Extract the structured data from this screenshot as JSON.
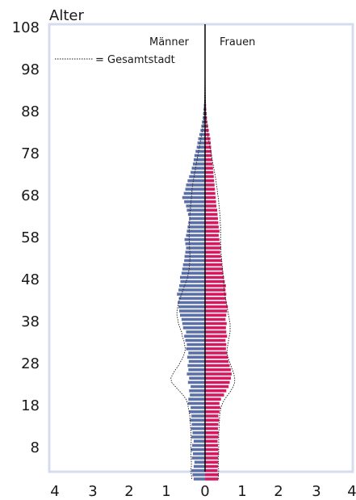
{
  "chart_data": {
    "type": "bar",
    "orientation": "horizontal",
    "title": "Alter",
    "y_ticks": [
      8,
      18,
      28,
      38,
      48,
      58,
      68,
      78,
      88,
      98,
      108
    ],
    "ylim": [
      0,
      108
    ],
    "x_ticks": [
      "4",
      "3",
      "2",
      "1",
      "0",
      "0",
      "1",
      "2",
      "3",
      "4"
    ],
    "xlim": [
      -4,
      4
    ],
    "legend": {
      "left_label": "Männer",
      "right_label": "Frauen",
      "line_label": "= Gesamtstadt",
      "position": "top"
    },
    "colors": {
      "men": "#5b6fa8",
      "women": "#d6195f",
      "frame": "#d4dcee",
      "outline": "#1a1a1a"
    },
    "ages": [
      0,
      1,
      2,
      3,
      4,
      5,
      6,
      7,
      8,
      9,
      10,
      11,
      12,
      13,
      14,
      15,
      16,
      17,
      18,
      19,
      20,
      21,
      22,
      23,
      24,
      25,
      26,
      27,
      28,
      29,
      30,
      31,
      32,
      33,
      34,
      35,
      36,
      37,
      38,
      39,
      40,
      41,
      42,
      43,
      44,
      45,
      46,
      47,
      48,
      49,
      50,
      51,
      52,
      53,
      54,
      55,
      56,
      57,
      58,
      59,
      60,
      61,
      62,
      63,
      64,
      65,
      66,
      67,
      68,
      69,
      70,
      71,
      72,
      73,
      74,
      75,
      76,
      77,
      78,
      79,
      80,
      81,
      82,
      83,
      84,
      85,
      86,
      87,
      88,
      89,
      90,
      91,
      92,
      93,
      94,
      95
    ],
    "men": [
      0.3,
      0.33,
      0.36,
      0.3,
      0.28,
      0.35,
      0.32,
      0.38,
      0.34,
      0.3,
      0.36,
      0.33,
      0.37,
      0.35,
      0.4,
      0.36,
      0.42,
      0.38,
      0.45,
      0.44,
      0.4,
      0.42,
      0.38,
      0.45,
      0.42,
      0.48,
      0.44,
      0.46,
      0.43,
      0.47,
      0.44,
      0.5,
      0.48,
      0.52,
      0.55,
      0.5,
      0.58,
      0.6,
      0.62,
      0.66,
      0.68,
      0.7,
      0.72,
      0.69,
      0.74,
      0.7,
      0.68,
      0.65,
      0.66,
      0.62,
      0.6,
      0.58,
      0.55,
      0.54,
      0.52,
      0.5,
      0.52,
      0.54,
      0.5,
      0.48,
      0.46,
      0.44,
      0.42,
      0.45,
      0.48,
      0.5,
      0.55,
      0.6,
      0.56,
      0.52,
      0.5,
      0.46,
      0.42,
      0.38,
      0.35,
      0.32,
      0.3,
      0.28,
      0.25,
      0.22,
      0.2,
      0.18,
      0.15,
      0.12,
      0.1,
      0.08,
      0.06,
      0.05,
      0.04,
      0.03,
      0.02,
      0.015,
      0.01,
      0.008,
      0.005,
      0.003
    ],
    "women": [
      0.35,
      0.36,
      0.33,
      0.34,
      0.35,
      0.34,
      0.36,
      0.35,
      0.34,
      0.33,
      0.35,
      0.36,
      0.34,
      0.35,
      0.37,
      0.35,
      0.38,
      0.4,
      0.38,
      0.42,
      0.5,
      0.56,
      0.62,
      0.65,
      0.68,
      0.7,
      0.68,
      0.65,
      0.62,
      0.6,
      0.58,
      0.55,
      0.56,
      0.54,
      0.58,
      0.56,
      0.55,
      0.57,
      0.54,
      0.56,
      0.58,
      0.6,
      0.57,
      0.55,
      0.56,
      0.54,
      0.55,
      0.52,
      0.5,
      0.48,
      0.47,
      0.45,
      0.44,
      0.42,
      0.4,
      0.42,
      0.4,
      0.38,
      0.36,
      0.38,
      0.36,
      0.35,
      0.34,
      0.33,
      0.32,
      0.3,
      0.29,
      0.28,
      0.27,
      0.26,
      0.25,
      0.24,
      0.23,
      0.22,
      0.21,
      0.2,
      0.19,
      0.18,
      0.17,
      0.16,
      0.15,
      0.14,
      0.12,
      0.1,
      0.08,
      0.06,
      0.05,
      0.04,
      0.03,
      0.025,
      0.02,
      0.012,
      0.008,
      0.005,
      0.003,
      0.002
    ],
    "gesamtstadt_men": [
      0.35,
      0.36,
      0.38,
      0.36,
      0.36,
      0.37,
      0.37,
      0.36,
      0.38,
      0.36,
      0.37,
      0.37,
      0.38,
      0.38,
      0.4,
      0.4,
      0.42,
      0.44,
      0.46,
      0.5,
      0.58,
      0.68,
      0.78,
      0.88,
      0.9,
      0.85,
      0.78,
      0.7,
      0.64,
      0.58,
      0.54,
      0.52,
      0.54,
      0.56,
      0.6,
      0.62,
      0.66,
      0.7,
      0.72,
      0.74,
      0.74,
      0.72,
      0.7,
      0.66,
      0.62,
      0.58,
      0.54,
      0.5,
      0.46,
      0.44,
      0.42,
      0.41,
      0.4,
      0.4,
      0.4,
      0.41,
      0.41,
      0.42,
      0.42,
      0.42,
      0.42,
      0.41,
      0.4,
      0.4,
      0.39,
      0.38,
      0.37,
      0.36,
      0.35,
      0.34,
      0.33,
      0.31,
      0.29,
      0.27,
      0.25,
      0.23,
      0.21,
      0.19,
      0.17,
      0.15,
      0.13,
      0.11,
      0.09,
      0.07,
      0.05,
      0.04,
      0.03,
      0.025,
      0.02,
      0.015,
      0.01,
      0.008,
      0.006,
      0.004,
      0.003,
      0.002
    ],
    "gesamtstadt_women": [
      0.35,
      0.35,
      0.36,
      0.35,
      0.35,
      0.35,
      0.36,
      0.36,
      0.36,
      0.36,
      0.36,
      0.36,
      0.37,
      0.37,
      0.38,
      0.38,
      0.4,
      0.42,
      0.46,
      0.52,
      0.6,
      0.68,
      0.74,
      0.78,
      0.78,
      0.76,
      0.72,
      0.68,
      0.64,
      0.6,
      0.58,
      0.58,
      0.6,
      0.62,
      0.64,
      0.66,
      0.66,
      0.66,
      0.64,
      0.62,
      0.6,
      0.58,
      0.56,
      0.54,
      0.52,
      0.5,
      0.5,
      0.49,
      0.48,
      0.47,
      0.46,
      0.45,
      0.44,
      0.43,
      0.42,
      0.42,
      0.41,
      0.41,
      0.41,
      0.41,
      0.41,
      0.4,
      0.4,
      0.39,
      0.38,
      0.37,
      0.36,
      0.35,
      0.33,
      0.32,
      0.3,
      0.29,
      0.27,
      0.25,
      0.23,
      0.21,
      0.19,
      0.17,
      0.15,
      0.13,
      0.11,
      0.09,
      0.07,
      0.06,
      0.05,
      0.04,
      0.03,
      0.025,
      0.02,
      0.015,
      0.01,
      0.008,
      0.006,
      0.004,
      0.003,
      0.002
    ]
  }
}
